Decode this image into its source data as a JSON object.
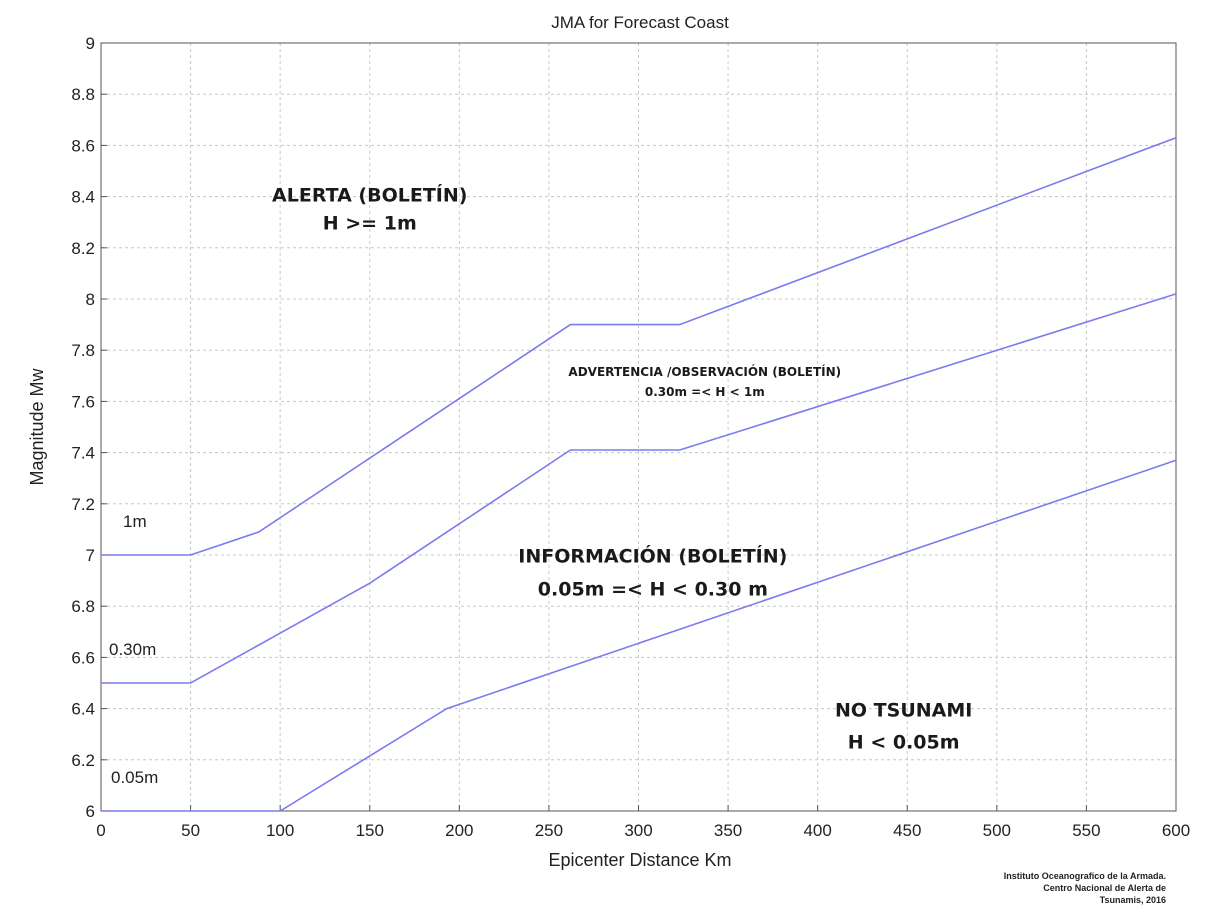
{
  "chart_data": {
    "type": "line",
    "title": "JMA for Forecast Coast",
    "xlabel": "Epicenter Distance Km",
    "ylabel": "Magnitude Mw",
    "xlim": [
      0,
      600
    ],
    "ylim": [
      6,
      9
    ],
    "xticks": [
      0,
      50,
      100,
      150,
      200,
      250,
      300,
      350,
      400,
      450,
      500,
      550,
      600
    ],
    "yticks": [
      6,
      6.2,
      6.4,
      6.6,
      6.8,
      7,
      7.2,
      7.4,
      7.6,
      7.8,
      8,
      8.2,
      8.4,
      8.6,
      8.8,
      9
    ],
    "ytick_labels": [
      "6",
      "6.2",
      "6.4",
      "6.6",
      "6.8",
      "7",
      "7.2",
      "7.4",
      "7.6",
      "7.8",
      "8",
      "8.2",
      "8.4",
      "8.6",
      "8.8",
      "9"
    ],
    "grid": true,
    "line_color": "#7b7bee",
    "series": [
      {
        "name": "1m",
        "x": [
          0,
          50,
          88,
          262,
          323,
          600
        ],
        "y": [
          7.0,
          7.0,
          7.09,
          7.9,
          7.9,
          8.63
        ]
      },
      {
        "name": "0.30m",
        "x": [
          0,
          50,
          150,
          262,
          323,
          600
        ],
        "y": [
          6.5,
          6.5,
          6.89,
          7.41,
          7.41,
          8.02
        ]
      },
      {
        "name": "0.05m",
        "x": [
          0,
          100,
          193,
          600
        ],
        "y": [
          6.0,
          6.0,
          6.4,
          7.37
        ]
      }
    ],
    "annotations": [
      {
        "id": "alerta",
        "lines": [
          "ALERTA (BOLETÍN)",
          "H >= 1m"
        ],
        "x": 150,
        "y": 8.38
      },
      {
        "id": "advertencia",
        "lines": [
          "ADVERTENCIA /OBSERVACIÓN (BOLETÍN)",
          "0.30m =< H < 1m"
        ],
        "x": 337,
        "y": 7.7
      },
      {
        "id": "informacion",
        "lines": [
          "INFORMACIÓN (BOLETÍN)",
          "0.05m =< H < 0.30 m"
        ],
        "x": 308,
        "y": 6.97
      },
      {
        "id": "no-tsunami",
        "lines": [
          "NO TSUNAMI",
          "H < 0.05m"
        ],
        "x": 448,
        "y": 6.37
      }
    ],
    "credit": [
      "Instituto Oceanografico de la Armada.",
      "Centro Nacional de Alerta de",
      "Tsunamis, 2016"
    ]
  }
}
